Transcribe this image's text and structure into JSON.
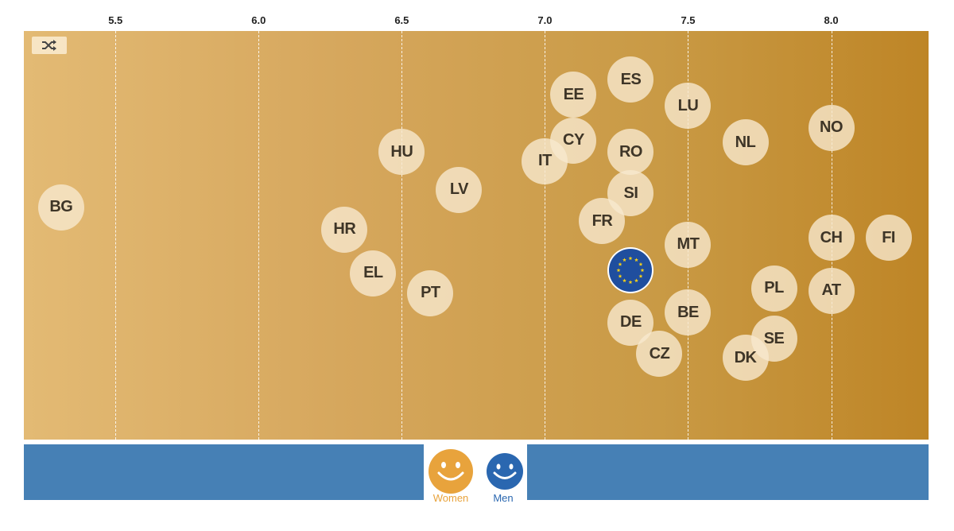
{
  "colors": {
    "plot_gradient_start": "#e3ba74",
    "plot_gradient_end": "#be8526",
    "bubble_fill": "#f8e8ce",
    "bubble_text": "#3e3527",
    "bottom_bar": "#4680b5",
    "women": "#e8a33c",
    "men": "#2a67b0",
    "eu_blue": "#1f4e9e",
    "eu_star": "#f7d117"
  },
  "toolbar": {
    "shuffle_icon": "shuffle-icon"
  },
  "chart_data": {
    "type": "scatter",
    "x_ticks": [
      "5.5",
      "6.0",
      "6.5",
      "7.0",
      "7.5",
      "8.0"
    ],
    "x_tick_values": [
      5.5,
      6.0,
      6.5,
      7.0,
      7.5,
      8.0
    ],
    "xlim": [
      5.18,
      8.34
    ],
    "grid": "vertical dashed",
    "points": [
      {
        "label": "BG",
        "x": 5.31,
        "row": 0.431
      },
      {
        "label": "HU",
        "x": 6.5,
        "row": 0.296
      },
      {
        "label": "LV",
        "x": 6.7,
        "row": 0.389
      },
      {
        "label": "HR",
        "x": 6.3,
        "row": 0.486
      },
      {
        "label": "EL",
        "x": 6.4,
        "row": 0.593
      },
      {
        "label": "PT",
        "x": 6.6,
        "row": 0.642
      },
      {
        "label": "EE",
        "x": 7.1,
        "row": 0.156
      },
      {
        "label": "ES",
        "x": 7.3,
        "row": 0.119
      },
      {
        "label": "CY",
        "x": 7.1,
        "row": 0.268
      },
      {
        "label": "IT",
        "x": 7.0,
        "row": 0.319
      },
      {
        "label": "RO",
        "x": 7.3,
        "row": 0.296
      },
      {
        "label": "SI",
        "x": 7.3,
        "row": 0.397
      },
      {
        "label": "FR",
        "x": 7.2,
        "row": 0.465
      },
      {
        "label": "LU",
        "x": 7.5,
        "row": 0.183
      },
      {
        "label": "NL",
        "x": 7.7,
        "row": 0.273
      },
      {
        "label": "NO",
        "x": 8.0,
        "row": 0.237
      },
      {
        "label": "MT",
        "x": 7.5,
        "row": 0.523
      },
      {
        "label": "CH",
        "x": 8.0,
        "row": 0.506
      },
      {
        "label": "FI",
        "x": 8.2,
        "row": 0.506
      },
      {
        "label": "PL",
        "x": 7.8,
        "row": 0.63
      },
      {
        "label": "AT",
        "x": 8.0,
        "row": 0.636
      },
      {
        "label": "DE",
        "x": 7.3,
        "row": 0.714
      },
      {
        "label": "BE",
        "x": 7.5,
        "row": 0.689
      },
      {
        "label": "CZ",
        "x": 7.4,
        "row": 0.79
      },
      {
        "label": "SE",
        "x": 7.8,
        "row": 0.753
      },
      {
        "label": "DK",
        "x": 7.7,
        "row": 0.8
      }
    ],
    "eu_point": {
      "x": 7.3,
      "row": 0.585,
      "icon": "eu-flag-icon"
    }
  },
  "legend": {
    "women_label": "Women",
    "men_label": "Men",
    "women_icon": "smiley-women-icon",
    "men_icon": "smiley-men-icon"
  }
}
